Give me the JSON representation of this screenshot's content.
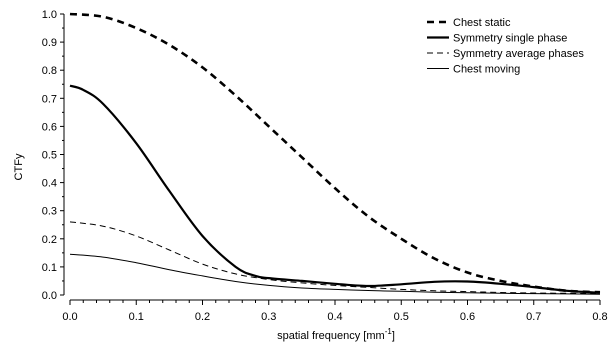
{
  "chart_data": {
    "type": "line",
    "title": "",
    "xlabel_prefix": "spatial frequency [mm",
    "xlabel_exponent": "-1",
    "xlabel_suffix": "]",
    "ylabel": "CTFy",
    "xlim": [
      0.0,
      0.8
    ],
    "ylim": [
      0.0,
      1.0
    ],
    "x_ticks": [
      "0.0",
      "0.1",
      "0.2",
      "0.3",
      "0.4",
      "0.5",
      "0.6",
      "0.7",
      "0.8"
    ],
    "y_ticks": [
      "0.0",
      "0.1",
      "0.2",
      "0.3",
      "0.4",
      "0.5",
      "0.6",
      "0.7",
      "0.8",
      "0.9",
      "1.0"
    ],
    "grid": false,
    "legend_position": "top-right",
    "series": [
      {
        "name": "Chest static",
        "style": "heavy-dashed",
        "color": "#000000",
        "x": [
          0.0,
          0.05,
          0.1,
          0.15,
          0.2,
          0.25,
          0.3,
          0.35,
          0.4,
          0.45,
          0.5,
          0.55,
          0.6,
          0.65,
          0.7,
          0.75,
          0.8
        ],
        "y": [
          1.0,
          0.99,
          0.95,
          0.89,
          0.81,
          0.71,
          0.6,
          0.49,
          0.38,
          0.28,
          0.2,
          0.13,
          0.08,
          0.05,
          0.03,
          0.015,
          0.01
        ]
      },
      {
        "name": "Symmetry single phase",
        "style": "heavy-solid",
        "color": "#000000",
        "x": [
          0.0,
          0.02,
          0.05,
          0.1,
          0.15,
          0.2,
          0.25,
          0.28,
          0.3,
          0.35,
          0.4,
          0.45,
          0.5,
          0.55,
          0.6,
          0.65,
          0.7,
          0.75,
          0.8
        ],
        "y": [
          0.745,
          0.73,
          0.68,
          0.54,
          0.37,
          0.21,
          0.1,
          0.068,
          0.06,
          0.05,
          0.04,
          0.032,
          0.038,
          0.047,
          0.048,
          0.04,
          0.028,
          0.015,
          0.008
        ]
      },
      {
        "name": "Symmetry average phases",
        "style": "thin-dashed",
        "color": "#000000",
        "x": [
          0.0,
          0.05,
          0.1,
          0.15,
          0.2,
          0.25,
          0.3,
          0.35,
          0.4,
          0.45,
          0.5,
          0.55,
          0.6,
          0.65,
          0.7,
          0.75,
          0.8
        ],
        "y": [
          0.26,
          0.245,
          0.21,
          0.16,
          0.11,
          0.075,
          0.055,
          0.043,
          0.034,
          0.027,
          0.02,
          0.015,
          0.012,
          0.009,
          0.007,
          0.006,
          0.005
        ]
      },
      {
        "name": "Chest moving",
        "style": "thin-solid",
        "color": "#000000",
        "x": [
          0.0,
          0.05,
          0.1,
          0.15,
          0.2,
          0.25,
          0.3,
          0.35,
          0.4,
          0.45,
          0.5,
          0.55,
          0.6,
          0.65,
          0.7,
          0.75,
          0.8
        ],
        "y": [
          0.145,
          0.135,
          0.115,
          0.09,
          0.068,
          0.048,
          0.034,
          0.025,
          0.02,
          0.016,
          0.013,
          0.01,
          0.008,
          0.006,
          0.005,
          0.004,
          0.003
        ]
      }
    ]
  }
}
